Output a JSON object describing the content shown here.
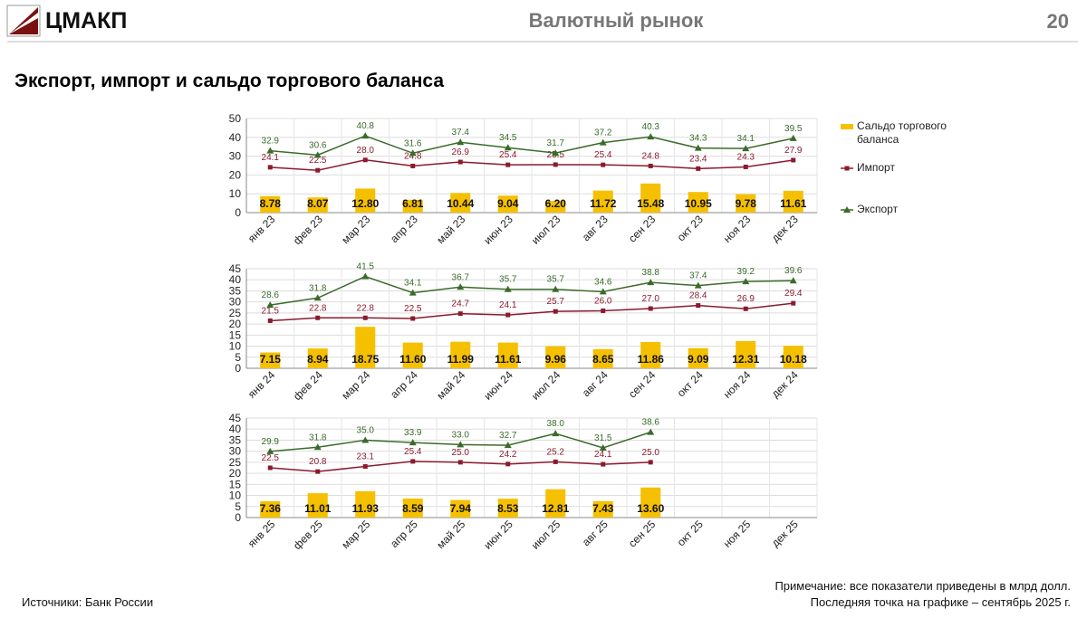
{
  "header": {
    "logo": "ЦМАКП",
    "section": "Валютный рынок",
    "page": "20"
  },
  "title": "Экспорт, импорт и сальдо торгового баланса",
  "footer": {
    "source": "Источники: Банк России",
    "note": "Примечание: все показатели приведены в млрд долл.",
    "last_point": "Последняя точка на графике – сентябрь 2025 г."
  },
  "chart_data": [
    {
      "type": "bar_line",
      "legend": "right",
      "grid": true,
      "ylim": [
        0,
        50
      ],
      "yticks": [
        0,
        10,
        20,
        30,
        40,
        50
      ],
      "categories": [
        "янв 23",
        "фев 23",
        "мар 23",
        "апр 23",
        "май 23",
        "июн 23",
        "июл 23",
        "авг 23",
        "сен 23",
        "окт 23",
        "ноя 23",
        "дек 23"
      ],
      "series": [
        {
          "name": "Сальдо торгового баланса",
          "kind": "bar",
          "color": "#f5c000",
          "values": [
            8.78,
            8.07,
            12.8,
            6.81,
            10.44,
            9.04,
            6.2,
            11.72,
            15.48,
            10.95,
            9.78,
            11.61
          ],
          "value_labels": [
            "8.78",
            "8.07",
            "12.80",
            "6.81",
            "10.44",
            "9.04",
            "6.20",
            "11.72",
            "15.48",
            "10.95",
            "9.78",
            "11.61"
          ]
        },
        {
          "name": "Импорт",
          "kind": "line",
          "color": "#8b1a2e",
          "values": [
            24.1,
            22.5,
            28.0,
            24.8,
            26.9,
            25.4,
            25.5,
            25.4,
            24.8,
            23.4,
            24.3,
            27.9
          ],
          "value_labels": [
            "24.1",
            "22.5",
            "28.0",
            "24.8",
            "26.9",
            "25.4",
            "25.5",
            "25.4",
            "24.8",
            "23.4",
            "24.3",
            "27.9"
          ]
        },
        {
          "name": "Экспорт",
          "kind": "line",
          "color": "#3a6b2a",
          "values": [
            32.9,
            30.6,
            40.8,
            31.6,
            37.4,
            34.5,
            31.7,
            37.2,
            40.3,
            34.3,
            34.1,
            39.5
          ],
          "value_labels": [
            "32.9",
            "30.6",
            "40.8",
            "31.6",
            "37.4",
            "34.5",
            "31.7",
            "37.2",
            "40.3",
            "34.3",
            "34.1",
            "39.5"
          ]
        }
      ]
    },
    {
      "type": "bar_line",
      "grid": true,
      "ylim": [
        0,
        45
      ],
      "yticks": [
        0,
        5,
        10,
        15,
        20,
        25,
        30,
        35,
        40,
        45
      ],
      "categories": [
        "янв 24",
        "фев 24",
        "мар 24",
        "апр 24",
        "май 24",
        "июн 24",
        "июл 24",
        "авг 24",
        "сен 24",
        "окт 24",
        "ноя 24",
        "дек 24"
      ],
      "series": [
        {
          "kind": "bar",
          "color": "#f5c000",
          "values": [
            7.15,
            8.94,
            18.75,
            11.6,
            11.99,
            11.61,
            9.96,
            8.65,
            11.86,
            9.09,
            12.31,
            10.18
          ],
          "value_labels": [
            "7.15",
            "8.94",
            "18.75",
            "11.60",
            "11.99",
            "11.61",
            "9.96",
            "8.65",
            "11.86",
            "9.09",
            "12.31",
            "10.18"
          ]
        },
        {
          "kind": "line",
          "color": "#8b1a2e",
          "values": [
            21.5,
            22.8,
            22.8,
            22.5,
            24.7,
            24.1,
            25.7,
            26.0,
            27.0,
            28.4,
            26.9,
            29.4
          ],
          "value_labels": [
            "21.5",
            "22.8",
            "22.8",
            "22.5",
            "24.7",
            "24.1",
            "25.7",
            "26.0",
            "27.0",
            "28.4",
            "26.9",
            "29.4"
          ]
        },
        {
          "kind": "line",
          "color": "#3a6b2a",
          "values": [
            28.6,
            31.8,
            41.5,
            34.1,
            36.7,
            35.7,
            35.7,
            34.6,
            38.8,
            37.4,
            39.2,
            39.6
          ],
          "value_labels": [
            "28.6",
            "31.8",
            "41.5",
            "34.1",
            "36.7",
            "35.7",
            "35.7",
            "34.6",
            "38.8",
            "37.4",
            "39.2",
            "39.6"
          ]
        }
      ]
    },
    {
      "type": "bar_line",
      "grid": true,
      "ylim": [
        0,
        45
      ],
      "yticks": [
        0,
        5,
        10,
        15,
        20,
        25,
        30,
        35,
        40,
        45
      ],
      "categories": [
        "янв 25",
        "фев 25",
        "мар 25",
        "апр 25",
        "май 25",
        "июн 25",
        "июл 25",
        "авг 25",
        "сен 25",
        "окт 25",
        "ноя 25",
        "дек 25"
      ],
      "series": [
        {
          "kind": "bar",
          "color": "#f5c000",
          "values": [
            7.36,
            11.01,
            11.93,
            8.59,
            7.94,
            8.53,
            12.81,
            7.43,
            13.6,
            null,
            null,
            null
          ],
          "value_labels": [
            "7.36",
            "11.01",
            "11.93",
            "8.59",
            "7.94",
            "8.53",
            "12.81",
            "7.43",
            "13.60",
            null,
            null,
            null
          ]
        },
        {
          "kind": "line",
          "color": "#8b1a2e",
          "values": [
            22.5,
            20.8,
            23.1,
            25.4,
            25.0,
            24.2,
            25.2,
            24.1,
            25.0,
            null,
            null,
            null
          ],
          "value_labels": [
            "22.5",
            "20.8",
            "23.1",
            "25.4",
            "25.0",
            "24.2",
            "25.2",
            "24.1",
            "25.0",
            null,
            null,
            null
          ]
        },
        {
          "kind": "line",
          "color": "#3a6b2a",
          "values": [
            29.9,
            31.8,
            35.0,
            33.9,
            33.0,
            32.7,
            38.0,
            31.5,
            38.6,
            null,
            null,
            null
          ],
          "value_labels": [
            "29.9",
            "31.8",
            "35.0",
            "33.9",
            "33.0",
            "32.7",
            "38.0",
            "31.5",
            "38.6",
            null,
            null,
            null
          ]
        }
      ]
    }
  ]
}
